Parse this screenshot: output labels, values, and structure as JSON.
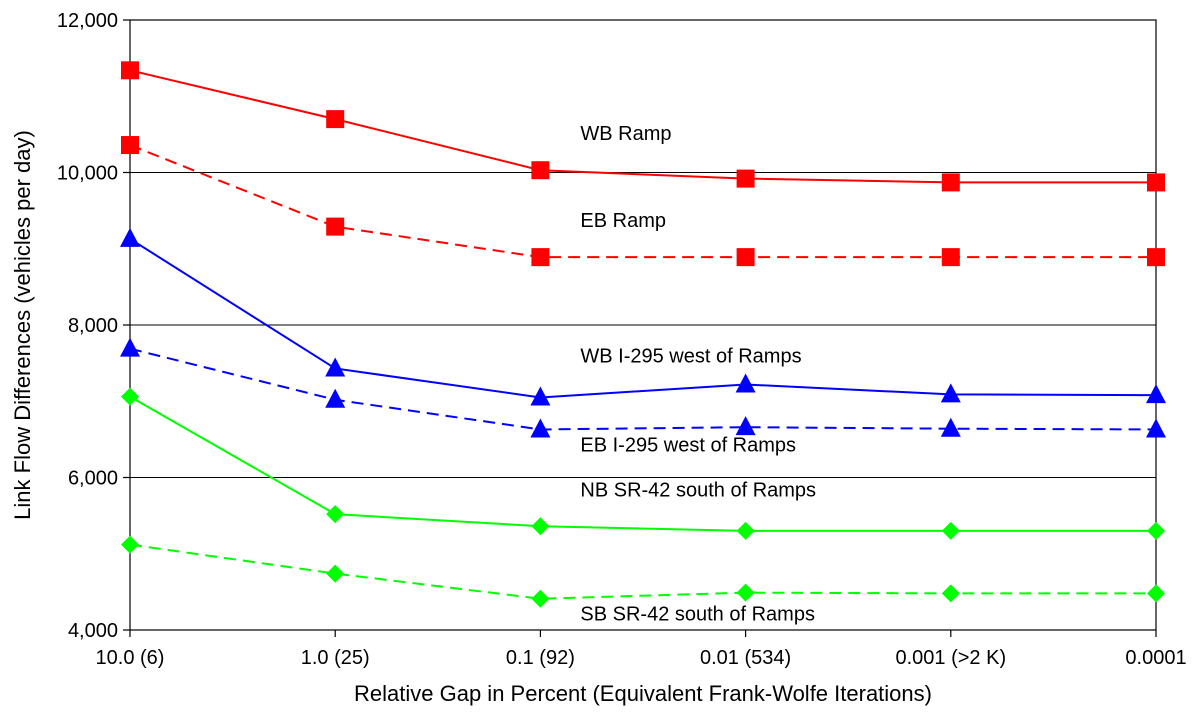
{
  "chart_data": {
    "type": "line",
    "title": "",
    "xlabel": "Relative Gap in Percent (Equivalent Frank-Wolfe Iterations)",
    "ylabel": "Link Flow Differences (vehicles per day)",
    "categories": [
      "10.0 (6)",
      "1.0 (25)",
      "0.1 (92)",
      "0.01 (534)",
      "0.001 (>2 K)",
      "0.0001"
    ],
    "ylim": [
      4000,
      12000
    ],
    "yticks": [
      4000,
      6000,
      8000,
      10000,
      12000
    ],
    "ytick_labels": [
      "4,000",
      "6,000",
      "8,000",
      "10,000",
      "12,000"
    ],
    "grid": true,
    "series": [
      {
        "name": "WB Ramp",
        "color": "#ff0000",
        "dash": "solid",
        "marker": "square",
        "values": [
          11340,
          10700,
          10030,
          9920,
          9870,
          9870
        ],
        "label_index": 2
      },
      {
        "name": "EB Ramp",
        "color": "#ff0000",
        "dash": "dashed",
        "marker": "square",
        "values": [
          10360,
          9290,
          8890,
          8890,
          8890,
          8890
        ],
        "label_index": 2
      },
      {
        "name": "WB I-295 west of Ramps",
        "color": "#0000ff",
        "dash": "solid",
        "marker": "triangle",
        "values": [
          9130,
          7430,
          7050,
          7220,
          7090,
          7080
        ],
        "label_index": 2
      },
      {
        "name": "EB I-295 west of Ramps",
        "color": "#0000ff",
        "dash": "dashed",
        "marker": "triangle",
        "values": [
          7690,
          7020,
          6630,
          6660,
          6640,
          6630
        ],
        "label_index": 2
      },
      {
        "name": "NB SR-42 south of  Ramps",
        "color": "#00ff00",
        "dash": "solid",
        "marker": "diamond",
        "values": [
          7060,
          5520,
          5360,
          5300,
          5300,
          5300
        ],
        "label_index": 2
      },
      {
        "name": "SB SR-42 south of  Ramps",
        "color": "#00ff00",
        "dash": "dashed",
        "marker": "diamond",
        "values": [
          5120,
          4740,
          4410,
          4490,
          4480,
          4480
        ],
        "label_index": 2
      }
    ]
  }
}
